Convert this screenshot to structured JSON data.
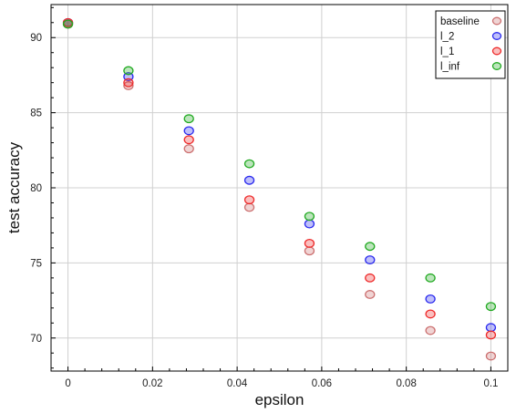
{
  "chart_data": {
    "type": "scatter",
    "title": "",
    "xlabel": "epsilon",
    "ylabel": "test accuracy",
    "xlim": [
      -0.004,
      0.104
    ],
    "ylim": [
      67.8,
      92.2
    ],
    "x_ticks": [
      0,
      0.02,
      0.04,
      0.06,
      0.08,
      0.1
    ],
    "x_tick_labels": [
      "0",
      "0.02",
      "0.04",
      "0.06",
      "0.08",
      "0.1"
    ],
    "y_ticks": [
      70,
      75,
      80,
      85,
      90
    ],
    "y_tick_labels": [
      "70",
      "75",
      "80",
      "85",
      "90"
    ],
    "grid": true,
    "legend_position": "top-right",
    "x": [
      0,
      0.0143,
      0.0286,
      0.0429,
      0.0571,
      0.0714,
      0.0857,
      0.1
    ],
    "series": [
      {
        "name": "baseline",
        "color": "#cc7070",
        "values": [
          90.9,
          86.8,
          82.6,
          78.7,
          75.8,
          72.9,
          70.5,
          68.8
        ]
      },
      {
        "name": "l_2",
        "color": "#2a2aee",
        "values": [
          91.0,
          87.4,
          83.8,
          80.5,
          77.6,
          75.2,
          72.6,
          70.7
        ]
      },
      {
        "name": "l_1",
        "color": "#ee2a2a",
        "values": [
          91.0,
          87.0,
          83.2,
          79.2,
          76.3,
          74.0,
          71.6,
          70.2
        ]
      },
      {
        "name": "l_inf",
        "color": "#22aa22",
        "values": [
          90.9,
          87.8,
          84.6,
          81.6,
          78.1,
          76.1,
          74.0,
          72.1
        ]
      }
    ]
  }
}
